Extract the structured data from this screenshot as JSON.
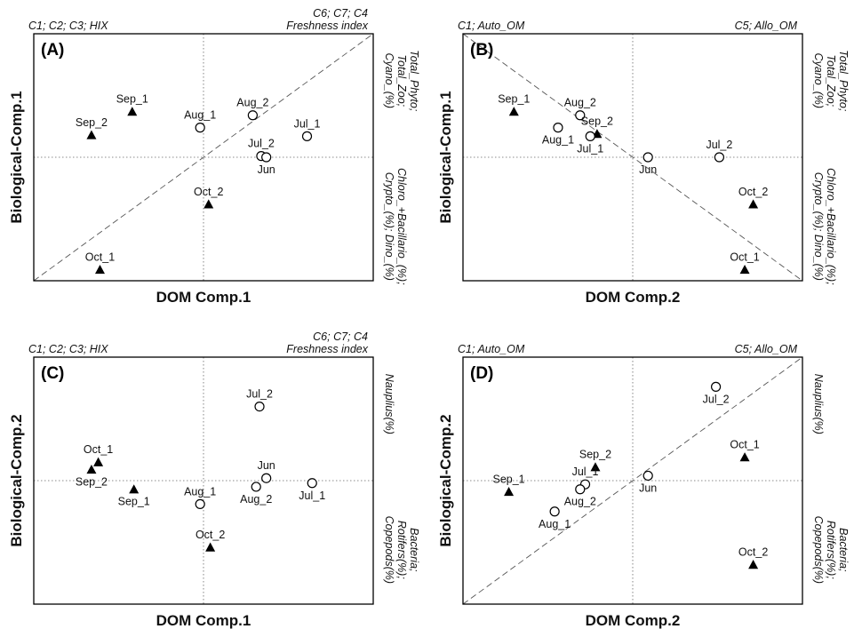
{
  "chart_data": [
    {
      "panel": "(A)",
      "type": "scatter",
      "xlabel": "DOM Comp.1",
      "ylabel": "Biological-Comp.1",
      "corner_labels": {
        "top_left": "C1; C2; C3; HIX",
        "top_right": [
          "C6; C7; C4",
          "Freshness index"
        ]
      },
      "side_labels": {
        "top": [
          "Total_Phyto;",
          "Total_Zoo;",
          "Cyano_(%)"
        ],
        "bottom": [
          "Chloro_+Bacillario_(%);",
          "Crypto_(%); Dino_(%)"
        ]
      },
      "diagonal": "ascending",
      "xlim": [
        -1,
        1
      ],
      "ylim": [
        -1,
        1
      ],
      "points": [
        {
          "label": "Sep_1",
          "x": -0.42,
          "y": 0.37,
          "marker": "triangle",
          "label_pos": "above"
        },
        {
          "label": "Sep_2",
          "x": -0.66,
          "y": 0.18,
          "marker": "triangle",
          "label_pos": "above"
        },
        {
          "label": "Aug_1",
          "x": -0.02,
          "y": 0.24,
          "marker": "circle",
          "label_pos": "above"
        },
        {
          "label": "Aug_2",
          "x": 0.29,
          "y": 0.34,
          "marker": "circle",
          "label_pos": "above"
        },
        {
          "label": "Jul_1",
          "x": 0.61,
          "y": 0.17,
          "marker": "circle",
          "label_pos": "above"
        },
        {
          "label": "Jul_2",
          "x": 0.34,
          "y": 0.01,
          "marker": "circle",
          "label_pos": "above"
        },
        {
          "label": "Jun",
          "x": 0.37,
          "y": 0.0,
          "marker": "circle",
          "label_pos": "below"
        },
        {
          "label": "Oct_2",
          "x": 0.03,
          "y": -0.38,
          "marker": "triangle",
          "label_pos": "above"
        },
        {
          "label": "Oct_1",
          "x": -0.61,
          "y": -0.91,
          "marker": "triangle",
          "label_pos": "above"
        }
      ]
    },
    {
      "panel": "(B)",
      "type": "scatter",
      "xlabel": "DOM Comp.2",
      "ylabel": "Biological-Comp.1",
      "corner_labels": {
        "top_left": "C1; Auto_OM",
        "top_right": [
          "C5; Allo_OM"
        ]
      },
      "side_labels": {
        "top": [
          "Total_Phyto;",
          "Total_Zoo;",
          "Cyano_(%)"
        ],
        "bottom": [
          "Chloro_+Bacillario_(%);",
          "Crypto_(%); Dino_(%)"
        ]
      },
      "diagonal": "descending",
      "xlim": [
        -1,
        1
      ],
      "ylim": [
        -1,
        1
      ],
      "points": [
        {
          "label": "Sep_1",
          "x": -0.7,
          "y": 0.37,
          "marker": "triangle",
          "label_pos": "above"
        },
        {
          "label": "Aug_2",
          "x": -0.31,
          "y": 0.34,
          "marker": "circle",
          "label_pos": "above"
        },
        {
          "label": "Sep_2",
          "x": -0.21,
          "y": 0.19,
          "marker": "triangle",
          "label_pos": "above"
        },
        {
          "label": "Aug_1",
          "x": -0.44,
          "y": 0.24,
          "marker": "circle",
          "label_pos": "below"
        },
        {
          "label": "Jul_1",
          "x": -0.25,
          "y": 0.17,
          "marker": "circle",
          "label_pos": "below"
        },
        {
          "label": "Jun",
          "x": 0.09,
          "y": 0.0,
          "marker": "circle",
          "label_pos": "below"
        },
        {
          "label": "Jul_2",
          "x": 0.51,
          "y": 0.0,
          "marker": "circle",
          "label_pos": "above"
        },
        {
          "label": "Oct_2",
          "x": 0.71,
          "y": -0.38,
          "marker": "triangle",
          "label_pos": "above"
        },
        {
          "label": "Oct_1",
          "x": 0.66,
          "y": -0.91,
          "marker": "triangle",
          "label_pos": "above"
        }
      ]
    },
    {
      "panel": "(C)",
      "type": "scatter",
      "xlabel": "DOM Comp.1",
      "ylabel": "Biological-Comp.2",
      "corner_labels": {
        "top_left": "C1; C2; C3; HIX",
        "top_right": [
          "C6; C7; C4",
          "Freshness index"
        ]
      },
      "side_labels": {
        "top": [
          "Nauplius(%)"
        ],
        "bottom": [
          "Bacteria;",
          "Rotifers(%);",
          "Copepods(%)"
        ]
      },
      "diagonal": "none",
      "xlim": [
        -1,
        1
      ],
      "ylim": [
        -1,
        1
      ],
      "points": [
        {
          "label": "Jul_2",
          "x": 0.33,
          "y": 0.6,
          "marker": "circle",
          "label_pos": "above"
        },
        {
          "label": "Oct_1",
          "x": -0.62,
          "y": 0.15,
          "marker": "triangle",
          "label_pos": "above"
        },
        {
          "label": "Sep_2",
          "x": -0.66,
          "y": 0.09,
          "marker": "triangle",
          "label_pos": "below"
        },
        {
          "label": "Jun",
          "x": 0.37,
          "y": 0.02,
          "marker": "circle",
          "label_pos": "above"
        },
        {
          "label": "Sep_1",
          "x": -0.41,
          "y": -0.07,
          "marker": "triangle",
          "label_pos": "below"
        },
        {
          "label": "Aug_1",
          "x": -0.02,
          "y": -0.19,
          "marker": "circle",
          "label_pos": "above"
        },
        {
          "label": "Aug_2",
          "x": 0.31,
          "y": -0.05,
          "marker": "circle",
          "label_pos": "below"
        },
        {
          "label": "Jul_1",
          "x": 0.64,
          "y": -0.02,
          "marker": "circle",
          "label_pos": "below"
        },
        {
          "label": "Oct_2",
          "x": 0.04,
          "y": -0.54,
          "marker": "triangle",
          "label_pos": "above"
        }
      ]
    },
    {
      "panel": "(D)",
      "type": "scatter",
      "xlabel": "DOM Comp.2",
      "ylabel": "Biological-Comp.2",
      "corner_labels": {
        "top_left": "C1; Auto_OM",
        "top_right": [
          "C5; Allo_OM"
        ]
      },
      "side_labels": {
        "top": [
          "Nauplius(%)"
        ],
        "bottom": [
          "Bacteria;",
          "Rotifers(%);",
          "Copepods(%)"
        ]
      },
      "diagonal": "ascending",
      "xlim": [
        -1,
        1
      ],
      "ylim": [
        -1,
        1
      ],
      "points": [
        {
          "label": "Jul_2",
          "x": 0.49,
          "y": 0.76,
          "marker": "circle",
          "label_pos": "below"
        },
        {
          "label": "Oct_1",
          "x": 0.66,
          "y": 0.19,
          "marker": "triangle",
          "label_pos": "above"
        },
        {
          "label": "Sep_2",
          "x": -0.22,
          "y": 0.11,
          "marker": "triangle",
          "label_pos": "above"
        },
        {
          "label": "Jun",
          "x": 0.09,
          "y": 0.04,
          "marker": "circle",
          "label_pos": "below"
        },
        {
          "label": "Jul_1",
          "x": -0.28,
          "y": -0.03,
          "marker": "circle",
          "label_pos": "above"
        },
        {
          "label": "Sep_1",
          "x": -0.73,
          "y": -0.09,
          "marker": "triangle",
          "label_pos": "above"
        },
        {
          "label": "Aug_2",
          "x": -0.31,
          "y": -0.07,
          "marker": "circle",
          "label_pos": "below"
        },
        {
          "label": "Aug_1",
          "x": -0.46,
          "y": -0.25,
          "marker": "circle",
          "label_pos": "below"
        },
        {
          "label": "Oct_2",
          "x": 0.71,
          "y": -0.68,
          "marker": "triangle",
          "label_pos": "above"
        }
      ]
    }
  ]
}
